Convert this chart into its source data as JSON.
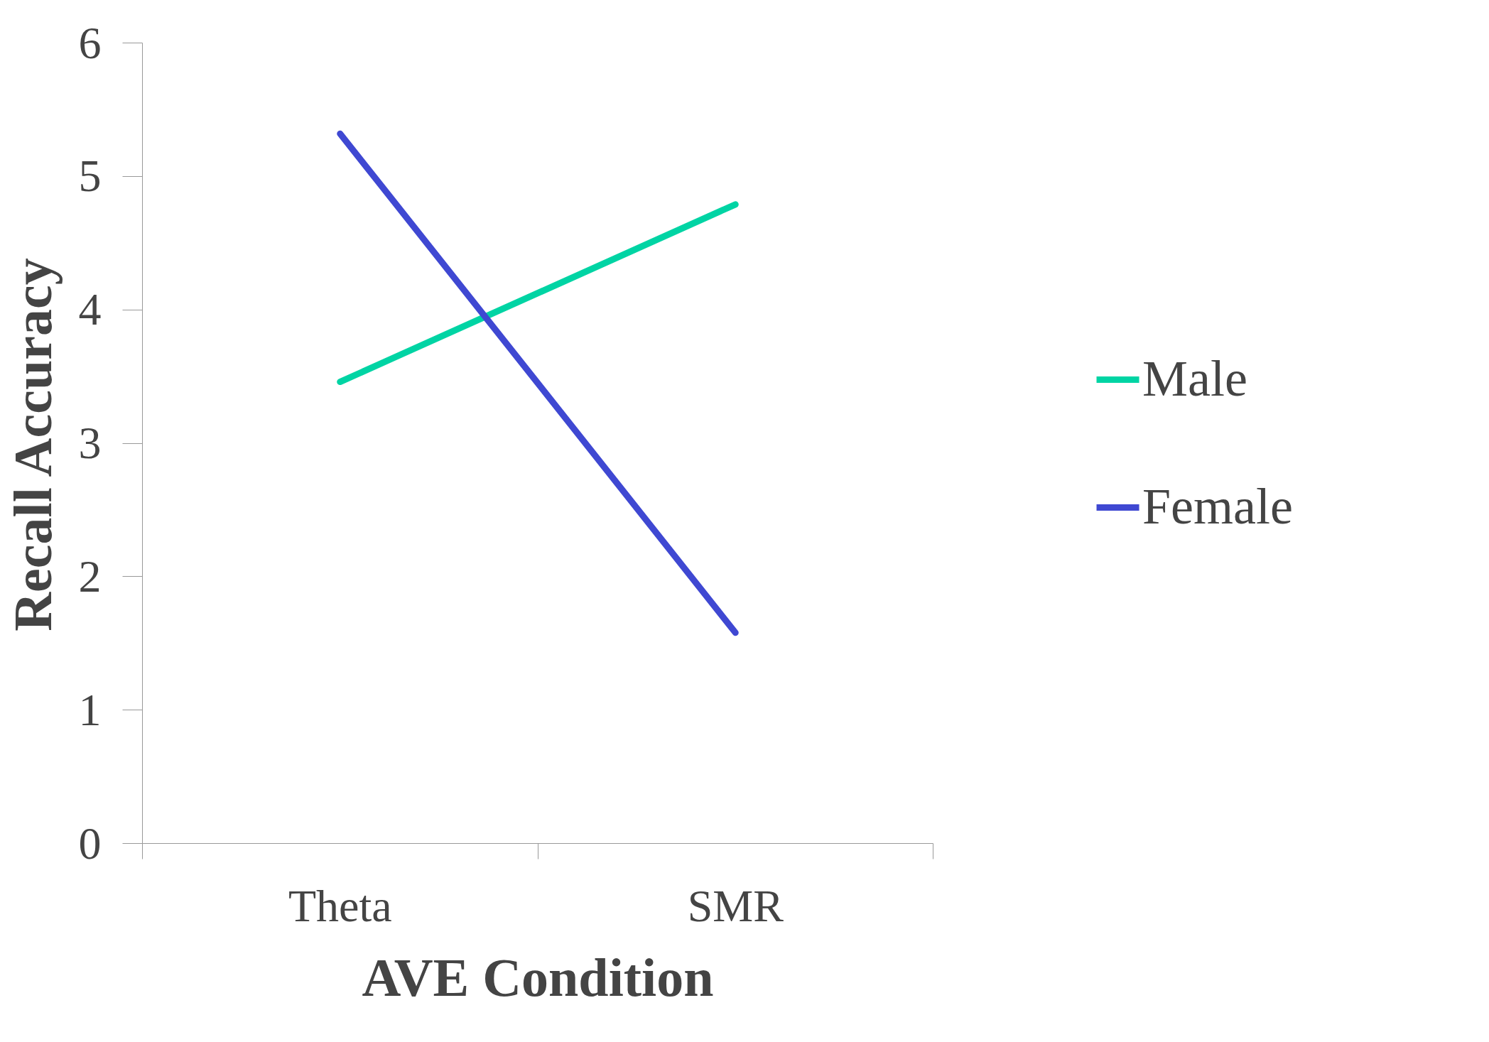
{
  "chart_data": {
    "type": "line",
    "xlabel": "AVE Condition",
    "ylabel": "Recall Accuracy",
    "categories": [
      "Theta",
      "SMR"
    ],
    "series": [
      {
        "name": "Male",
        "color": "#00d4a4",
        "values": [
          3.46,
          4.79
        ]
      },
      {
        "name": "Female",
        "color": "#3f48d2",
        "values": [
          5.32,
          1.58
        ]
      }
    ],
    "ylim": [
      0,
      6
    ],
    "yticks": [
      0,
      1,
      2,
      3,
      4,
      5,
      6
    ],
    "grid": false,
    "legend": "right",
    "marker": "none",
    "line_style": "solid"
  }
}
